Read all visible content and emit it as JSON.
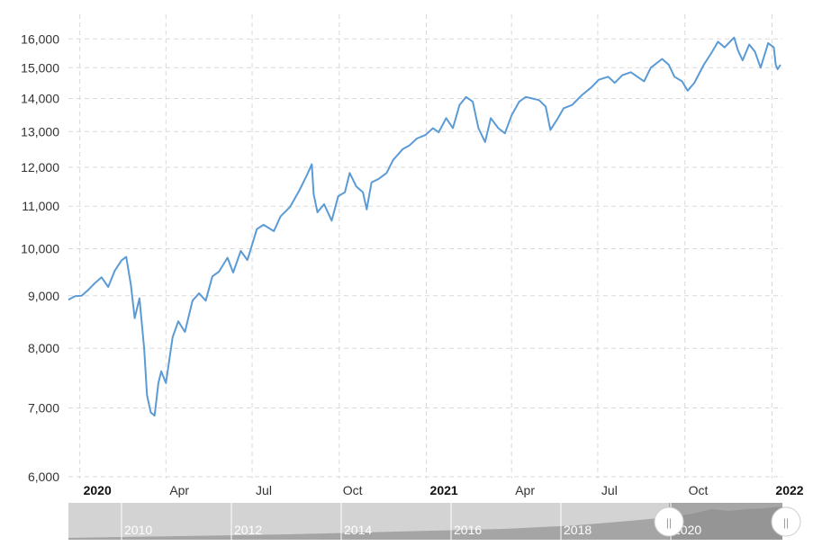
{
  "chart_data": {
    "type": "line",
    "scale": "log",
    "ylim": [
      6000,
      16500
    ],
    "y_ticks": [
      "6,000",
      "7,000",
      "8,000",
      "9,000",
      "10,000",
      "11,000",
      "12,000",
      "13,000",
      "14,000",
      "15,000",
      "16,000"
    ],
    "y_tick_values": [
      6000,
      7000,
      8000,
      9000,
      10000,
      11000,
      12000,
      13000,
      14000,
      15000,
      16000
    ],
    "x_ticks": [
      {
        "label": "2020",
        "date": "2020-01-01",
        "bold": true
      },
      {
        "label": "Apr",
        "date": "2020-04-01",
        "bold": false
      },
      {
        "label": "Jul",
        "date": "2020-07-01",
        "bold": false
      },
      {
        "label": "Oct",
        "date": "2020-10-01",
        "bold": false
      },
      {
        "label": "2021",
        "date": "2021-01-01",
        "bold": true
      },
      {
        "label": "Apr",
        "date": "2021-04-01",
        "bold": false
      },
      {
        "label": "Jul",
        "date": "2021-07-01",
        "bold": false
      },
      {
        "label": "Oct",
        "date": "2021-10-01",
        "bold": false
      },
      {
        "label": "2022",
        "date": "2022-01-01",
        "bold": true
      }
    ],
    "xlim": [
      "2019-12-20",
      "2022-01-12"
    ],
    "line_color": "#5b9bd5",
    "grid": true,
    "series": [
      {
        "points": [
          [
            "2019-12-20",
            8920
          ],
          [
            "2019-12-27",
            8990
          ],
          [
            "2020-01-03",
            9000
          ],
          [
            "2020-01-10",
            9120
          ],
          [
            "2020-01-17",
            9260
          ],
          [
            "2020-01-24",
            9380
          ],
          [
            "2020-01-31",
            9180
          ],
          [
            "2020-02-07",
            9520
          ],
          [
            "2020-02-14",
            9740
          ],
          [
            "2020-02-19",
            9820
          ],
          [
            "2020-02-24",
            9220
          ],
          [
            "2020-02-28",
            8560
          ],
          [
            "2020-03-04",
            8950
          ],
          [
            "2020-03-09",
            8000
          ],
          [
            "2020-03-12",
            7200
          ],
          [
            "2020-03-16",
            6930
          ],
          [
            "2020-03-20",
            6880
          ],
          [
            "2020-03-24",
            7400
          ],
          [
            "2020-03-27",
            7600
          ],
          [
            "2020-04-01",
            7400
          ],
          [
            "2020-04-08",
            8200
          ],
          [
            "2020-04-14",
            8500
          ],
          [
            "2020-04-21",
            8300
          ],
          [
            "2020-04-29",
            8900
          ],
          [
            "2020-05-06",
            9050
          ],
          [
            "2020-05-13",
            8900
          ],
          [
            "2020-05-20",
            9400
          ],
          [
            "2020-05-27",
            9500
          ],
          [
            "2020-06-05",
            9800
          ],
          [
            "2020-06-11",
            9480
          ],
          [
            "2020-06-19",
            9950
          ],
          [
            "2020-06-26",
            9750
          ],
          [
            "2020-07-06",
            10450
          ],
          [
            "2020-07-13",
            10550
          ],
          [
            "2020-07-24",
            10400
          ],
          [
            "2020-07-31",
            10750
          ],
          [
            "2020-08-10",
            10980
          ],
          [
            "2020-08-20",
            11400
          ],
          [
            "2020-08-28",
            11800
          ],
          [
            "2020-09-02",
            12080
          ],
          [
            "2020-09-04",
            11300
          ],
          [
            "2020-09-08",
            10850
          ],
          [
            "2020-09-15",
            11050
          ],
          [
            "2020-09-23",
            10650
          ],
          [
            "2020-09-30",
            11250
          ],
          [
            "2020-10-07",
            11350
          ],
          [
            "2020-10-12",
            11850
          ],
          [
            "2020-10-19",
            11500
          ],
          [
            "2020-10-26",
            11350
          ],
          [
            "2020-10-30",
            10920
          ],
          [
            "2020-11-04",
            11600
          ],
          [
            "2020-11-12",
            11700
          ],
          [
            "2020-11-20",
            11850
          ],
          [
            "2020-11-27",
            12200
          ],
          [
            "2020-12-07",
            12500
          ],
          [
            "2020-12-14",
            12600
          ],
          [
            "2020-12-22",
            12800
          ],
          [
            "2020-12-31",
            12900
          ],
          [
            "2021-01-08",
            13100
          ],
          [
            "2021-01-14",
            12980
          ],
          [
            "2021-01-22",
            13400
          ],
          [
            "2021-01-29",
            13100
          ],
          [
            "2021-02-05",
            13800
          ],
          [
            "2021-02-12",
            14050
          ],
          [
            "2021-02-19",
            13900
          ],
          [
            "2021-02-25",
            13100
          ],
          [
            "2021-03-04",
            12700
          ],
          [
            "2021-03-10",
            13400
          ],
          [
            "2021-03-18",
            13100
          ],
          [
            "2021-03-25",
            12950
          ],
          [
            "2021-04-01",
            13480
          ],
          [
            "2021-04-09",
            13900
          ],
          [
            "2021-04-16",
            14050
          ],
          [
            "2021-04-23",
            14000
          ],
          [
            "2021-04-30",
            13950
          ],
          [
            "2021-05-07",
            13750
          ],
          [
            "2021-05-12",
            13050
          ],
          [
            "2021-05-19",
            13350
          ],
          [
            "2021-05-26",
            13700
          ],
          [
            "2021-06-04",
            13800
          ],
          [
            "2021-06-14",
            14100
          ],
          [
            "2021-06-24",
            14350
          ],
          [
            "2021-07-02",
            14600
          ],
          [
            "2021-07-12",
            14700
          ],
          [
            "2021-07-19",
            14500
          ],
          [
            "2021-07-27",
            14750
          ],
          [
            "2021-08-05",
            14850
          ],
          [
            "2021-08-19",
            14550
          ],
          [
            "2021-08-26",
            15000
          ],
          [
            "2021-09-07",
            15300
          ],
          [
            "2021-09-14",
            15100
          ],
          [
            "2021-09-20",
            14700
          ],
          [
            "2021-09-28",
            14550
          ],
          [
            "2021-10-04",
            14250
          ],
          [
            "2021-10-11",
            14500
          ],
          [
            "2021-10-21",
            15100
          ],
          [
            "2021-10-29",
            15500
          ],
          [
            "2021-11-05",
            15900
          ],
          [
            "2021-11-12",
            15700
          ],
          [
            "2021-11-22",
            16050
          ],
          [
            "2021-11-26",
            15600
          ],
          [
            "2021-12-01",
            15250
          ],
          [
            "2021-12-08",
            15800
          ],
          [
            "2021-12-14",
            15550
          ],
          [
            "2021-12-20",
            15000
          ],
          [
            "2021-12-28",
            15850
          ],
          [
            "2022-01-03",
            15700
          ],
          [
            "2022-01-05",
            15100
          ],
          [
            "2022-01-07",
            14950
          ],
          [
            "2022-01-10",
            15100
          ]
        ]
      }
    ],
    "navigator": {
      "labels": [
        "2010",
        "2012",
        "2014",
        "2016",
        "2018",
        "2020"
      ],
      "handle_glyph": "||"
    }
  }
}
